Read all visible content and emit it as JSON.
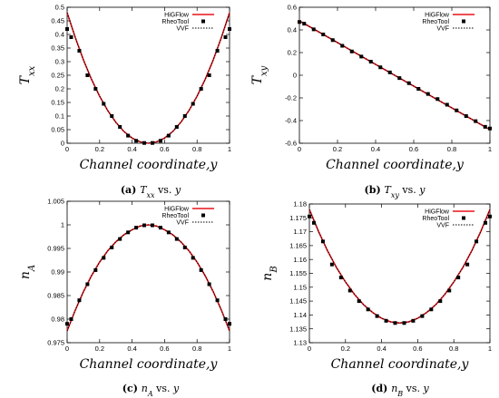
{
  "colors": {
    "higflow": "#e8141a",
    "rheotool": "#000000",
    "vvf": "#000000"
  },
  "legend_labels": [
    "HiGFlow",
    "RheoTool",
    "VVF"
  ],
  "panels": [
    {
      "caption_label": "(a)",
      "caption_text": " vs. ",
      "caption_sym": "T",
      "caption_sub": "xx",
      "caption_var": "y",
      "ylabel": "T",
      "ylabel_sub": "xx",
      "xlabel": "Channel coordinate,y",
      "xticks": [
        "0",
        "0.2",
        "0.4",
        "0.6",
        "0.8",
        "1"
      ],
      "yticks": [
        "0",
        "0.05",
        "0.1",
        "0.15",
        "0.2",
        "0.25",
        "0.3",
        "0.35",
        "0.4",
        "0.45",
        "0.5"
      ]
    },
    {
      "caption_label": "(b)",
      "caption_text": " vs. ",
      "caption_sym": "T",
      "caption_sub": "xy",
      "caption_var": "y",
      "ylabel": "T",
      "ylabel_sub": "xy",
      "xlabel": "Channel coordinate,y",
      "xticks": [
        "0",
        "0.2",
        "0.4",
        "0.6",
        "0.8",
        "1"
      ],
      "yticks": [
        "-0.6",
        "-0.4",
        "-0.2",
        "0",
        "0.2",
        "0.4",
        "0.6"
      ]
    },
    {
      "caption_label": "(c)",
      "caption_text": " vs. ",
      "caption_sym": "n",
      "caption_sub": "A",
      "caption_var": "y",
      "ylabel": "n",
      "ylabel_sub": "A",
      "xlabel": "Channel coordinate,y",
      "xticks": [
        "0",
        "0.2",
        "0.4",
        "0.6",
        "0.8",
        "1"
      ],
      "yticks": [
        "0.975",
        "0.98",
        "0.985",
        "0.99",
        "0.995",
        "1",
        "1.005"
      ]
    },
    {
      "caption_label": "(d)",
      "caption_text": " vs. ",
      "caption_sym": "n",
      "caption_sub": "B",
      "caption_var": "y",
      "ylabel": "n",
      "ylabel_sub": "B",
      "xlabel": "Channel coordinate,y",
      "xticks": [
        "0",
        "0.2",
        "0.4",
        "0.6",
        "0.8",
        "1"
      ],
      "yticks": [
        "1.13",
        "1.135",
        "1.14",
        "1.145",
        "1.15",
        "1.155",
        "1.16",
        "1.165",
        "1.17",
        "1.175",
        "1.18"
      ]
    }
  ],
  "chart_data": [
    {
      "type": "line",
      "xlabel": "Channel coordinate,y",
      "ylabel": "Txx",
      "xlim": [
        0,
        1
      ],
      "ylim": [
        0,
        0.5
      ],
      "legend": "top-right",
      "series": [
        {
          "name": "HiGFlow",
          "style": "line",
          "x": [
            0,
            0.05,
            0.1,
            0.15,
            0.2,
            0.25,
            0.3,
            0.35,
            0.4,
            0.45,
            0.5,
            0.55,
            0.6,
            0.65,
            0.7,
            0.75,
            0.8,
            0.85,
            0.9,
            0.95,
            1
          ],
          "y": [
            0.48,
            0.389,
            0.307,
            0.235,
            0.173,
            0.12,
            0.077,
            0.043,
            0.019,
            0.005,
            0.0,
            0.005,
            0.019,
            0.043,
            0.077,
            0.12,
            0.173,
            0.235,
            0.307,
            0.389,
            0.48
          ]
        },
        {
          "name": "RheoTool",
          "style": "markers",
          "x": [
            0.0,
            0.025,
            0.075,
            0.125,
            0.175,
            0.225,
            0.275,
            0.325,
            0.375,
            0.425,
            0.475,
            0.525,
            0.575,
            0.625,
            0.675,
            0.725,
            0.775,
            0.825,
            0.875,
            0.925,
            0.975,
            1.0
          ],
          "y": [
            0.42,
            0.39,
            0.34,
            0.25,
            0.2,
            0.145,
            0.1,
            0.06,
            0.028,
            0.009,
            0.001,
            0.001,
            0.009,
            0.028,
            0.06,
            0.1,
            0.145,
            0.2,
            0.25,
            0.34,
            0.39,
            0.42
          ]
        },
        {
          "name": "VVF",
          "style": "dotted",
          "x": [
            0,
            0.05,
            0.1,
            0.15,
            0.2,
            0.25,
            0.3,
            0.35,
            0.4,
            0.45,
            0.5,
            0.55,
            0.6,
            0.65,
            0.7,
            0.75,
            0.8,
            0.85,
            0.9,
            0.95,
            1
          ],
          "y": [
            0.48,
            0.389,
            0.307,
            0.235,
            0.173,
            0.12,
            0.077,
            0.043,
            0.019,
            0.005,
            0.0,
            0.005,
            0.019,
            0.043,
            0.077,
            0.12,
            0.173,
            0.235,
            0.307,
            0.389,
            0.48
          ]
        }
      ]
    },
    {
      "type": "line",
      "xlabel": "Channel coordinate,y",
      "ylabel": "Txy",
      "xlim": [
        0,
        1
      ],
      "ylim": [
        -0.6,
        0.6
      ],
      "legend": "top-right",
      "series": [
        {
          "name": "HiGFlow",
          "style": "line",
          "x": [
            0,
            1
          ],
          "y": [
            0.48,
            -0.48
          ]
        },
        {
          "name": "RheoTool",
          "style": "markers",
          "x": [
            0.0,
            0.025,
            0.075,
            0.125,
            0.175,
            0.225,
            0.275,
            0.325,
            0.375,
            0.425,
            0.475,
            0.525,
            0.575,
            0.625,
            0.675,
            0.725,
            0.775,
            0.825,
            0.875,
            0.925,
            0.975,
            1.0
          ],
          "y": [
            0.47,
            0.455,
            0.405,
            0.36,
            0.31,
            0.26,
            0.21,
            0.165,
            0.12,
            0.07,
            0.025,
            -0.025,
            -0.07,
            -0.12,
            -0.165,
            -0.21,
            -0.26,
            -0.31,
            -0.36,
            -0.405,
            -0.455,
            -0.47
          ]
        },
        {
          "name": "VVF",
          "style": "dotted",
          "x": [
            0,
            1
          ],
          "y": [
            0.48,
            -0.48
          ]
        }
      ]
    },
    {
      "type": "line",
      "xlabel": "Channel coordinate,y",
      "ylabel": "nA",
      "xlim": [
        0,
        1
      ],
      "ylim": [
        0.975,
        1.005
      ],
      "legend": "top-right",
      "series": [
        {
          "name": "HiGFlow",
          "style": "line",
          "x": [
            0,
            0.05,
            0.1,
            0.15,
            0.2,
            0.25,
            0.3,
            0.35,
            0.4,
            0.45,
            0.5,
            0.55,
            0.6,
            0.65,
            0.7,
            0.75,
            0.8,
            0.85,
            0.9,
            0.95,
            1
          ],
          "y": [
            0.9775,
            0.9819,
            0.9858,
            0.9892,
            0.9921,
            0.9945,
            0.9964,
            0.9979,
            0.99895,
            0.99975,
            1.0,
            0.99975,
            0.99895,
            0.9979,
            0.9964,
            0.9945,
            0.9921,
            0.9892,
            0.9858,
            0.9819,
            0.9775
          ]
        },
        {
          "name": "RheoTool",
          "style": "markers",
          "x": [
            0.0,
            0.025,
            0.075,
            0.125,
            0.175,
            0.225,
            0.275,
            0.325,
            0.375,
            0.425,
            0.475,
            0.525,
            0.575,
            0.625,
            0.675,
            0.725,
            0.775,
            0.825,
            0.875,
            0.925,
            0.975,
            1.0
          ],
          "y": [
            0.979,
            0.98,
            0.984,
            0.9874,
            0.9904,
            0.993,
            0.9952,
            0.997,
            0.9984,
            0.9994,
            0.9999,
            0.9999,
            0.9994,
            0.9984,
            0.997,
            0.9952,
            0.993,
            0.9904,
            0.9874,
            0.984,
            0.98,
            0.979
          ]
        },
        {
          "name": "VVF",
          "style": "dotted",
          "x": [
            0,
            0.05,
            0.1,
            0.15,
            0.2,
            0.25,
            0.3,
            0.35,
            0.4,
            0.45,
            0.5,
            0.55,
            0.6,
            0.65,
            0.7,
            0.75,
            0.8,
            0.85,
            0.9,
            0.95,
            1
          ],
          "y": [
            0.9775,
            0.9819,
            0.9858,
            0.9892,
            0.9921,
            0.9945,
            0.9964,
            0.9979,
            0.99895,
            0.99975,
            1.0,
            0.99975,
            0.99895,
            0.9979,
            0.9964,
            0.9945,
            0.9921,
            0.9892,
            0.9858,
            0.9819,
            0.9775
          ]
        }
      ]
    },
    {
      "type": "line",
      "xlabel": "Channel coordinate,y",
      "ylabel": "nB",
      "xlim": [
        0,
        1
      ],
      "ylim": [
        1.13,
        1.18
      ],
      "legend": "top-right",
      "series": [
        {
          "name": "HiGFlow",
          "style": "line",
          "x": [
            0,
            0.05,
            0.1,
            0.15,
            0.2,
            0.25,
            0.3,
            0.35,
            0.4,
            0.45,
            0.5,
            0.55,
            0.6,
            0.65,
            0.7,
            0.75,
            0.8,
            0.85,
            0.9,
            0.95,
            1
          ],
          "y": [
            1.178,
            1.1702,
            1.1632,
            1.1571,
            1.1519,
            1.1474,
            1.1437,
            1.1409,
            1.1388,
            1.1375,
            1.1371,
            1.1375,
            1.1388,
            1.1409,
            1.1437,
            1.1474,
            1.1519,
            1.1571,
            1.1632,
            1.1702,
            1.178
          ]
        },
        {
          "name": "RheoTool",
          "style": "markers",
          "x": [
            0.0,
            0.025,
            0.075,
            0.125,
            0.175,
            0.225,
            0.275,
            0.325,
            0.375,
            0.425,
            0.475,
            0.525,
            0.575,
            0.625,
            0.675,
            0.725,
            0.775,
            0.825,
            0.875,
            0.925,
            0.975,
            1.0
          ],
          "y": [
            1.1755,
            1.1732,
            1.1665,
            1.1582,
            1.1535,
            1.1488,
            1.145,
            1.142,
            1.1396,
            1.1379,
            1.1371,
            1.1371,
            1.1379,
            1.1396,
            1.142,
            1.145,
            1.1488,
            1.1535,
            1.1582,
            1.1665,
            1.1732,
            1.1755
          ]
        },
        {
          "name": "VVF",
          "style": "dotted",
          "x": [
            0,
            0.05,
            0.1,
            0.15,
            0.2,
            0.25,
            0.3,
            0.35,
            0.4,
            0.45,
            0.5,
            0.55,
            0.6,
            0.65,
            0.7,
            0.75,
            0.8,
            0.85,
            0.9,
            0.95,
            1
          ],
          "y": [
            1.178,
            1.1702,
            1.1632,
            1.1571,
            1.1519,
            1.1474,
            1.1437,
            1.1409,
            1.1388,
            1.1375,
            1.1371,
            1.1375,
            1.1388,
            1.1409,
            1.1437,
            1.1474,
            1.1519,
            1.1571,
            1.1632,
            1.1702,
            1.178
          ]
        }
      ]
    }
  ]
}
